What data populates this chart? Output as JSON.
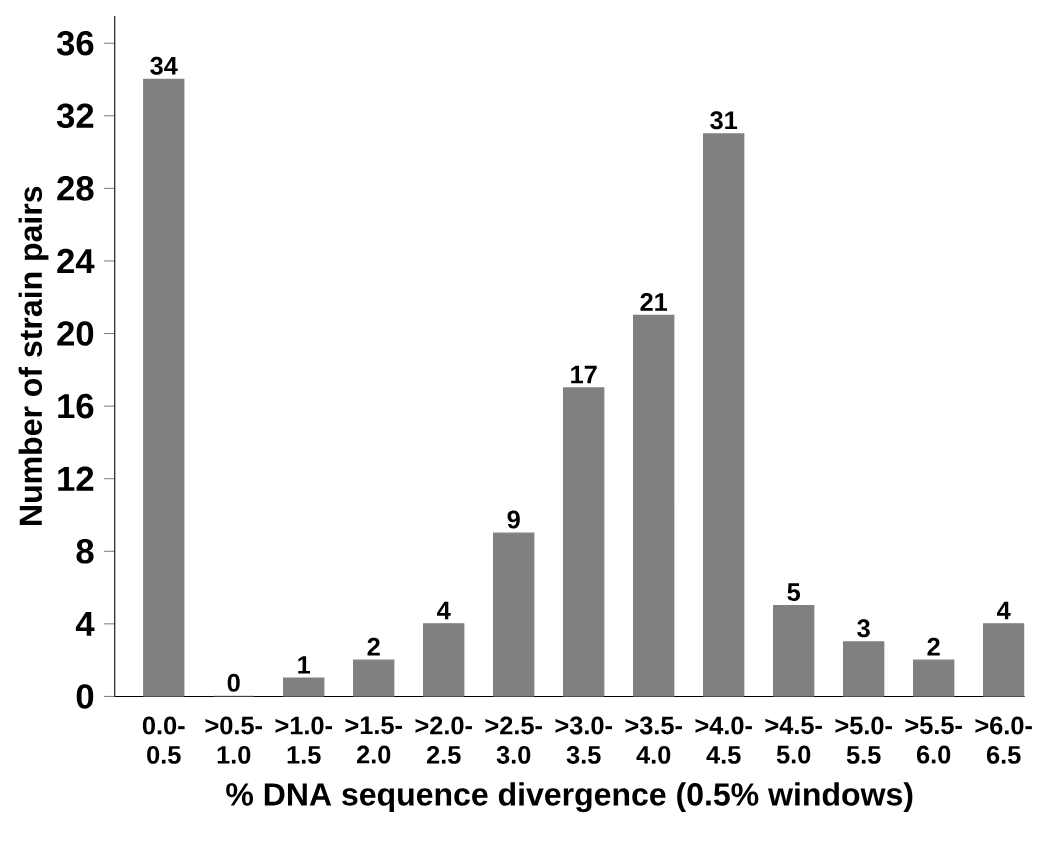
{
  "chart_data": {
    "type": "bar",
    "xlabel": "% DNA sequence divergence (0.5% windows)",
    "ylabel": "Number of strain pairs",
    "categories": [
      "0.0-0.5",
      ">0.5-1.0",
      ">1.0-1.5",
      ">1.5-2.0",
      ">2.0-2.5",
      ">2.5-3.0",
      ">3.0-3.5",
      ">3.5-4.0",
      ">4.0-4.5",
      ">4.5-5.0",
      ">5.0-5.5",
      ">5.5-6.0",
      ">6.0-6.5"
    ],
    "values": [
      34,
      0,
      1,
      2,
      4,
      9,
      17,
      21,
      31,
      5,
      3,
      2,
      4
    ],
    "color": "#808080",
    "ylim": [
      0,
      37.5
    ],
    "yticks": [
      0,
      4,
      8,
      12,
      16,
      20,
      24,
      28,
      32,
      36
    ],
    "data_labels": true,
    "grid": false
  }
}
